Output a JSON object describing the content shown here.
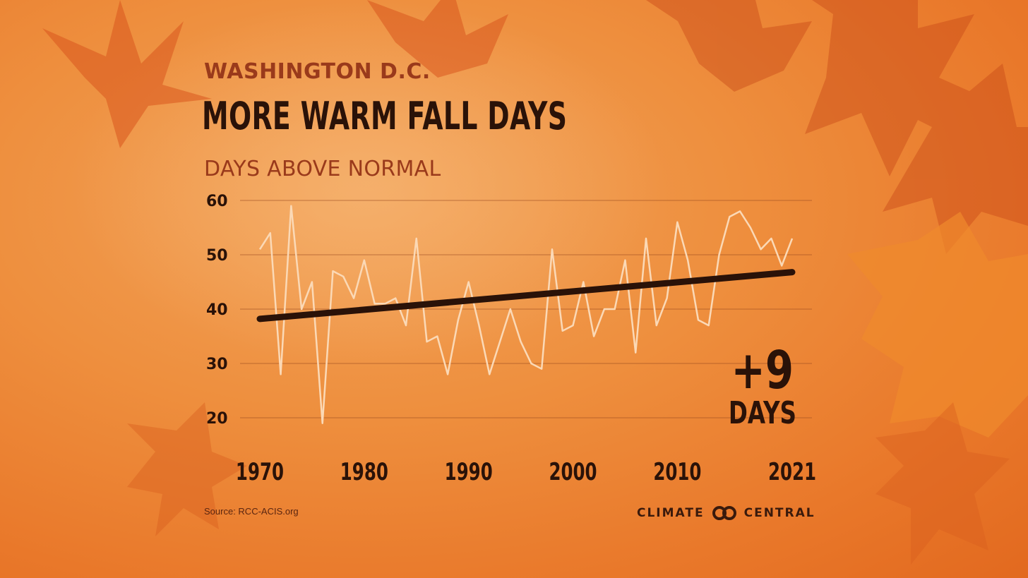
{
  "header": {
    "supertitle": "WASHINGTON D.C.",
    "title": "MORE WARM FALL DAYS",
    "subtitle": "DAYS ABOVE NORMAL"
  },
  "callout": {
    "value": "+9",
    "unit": "DAYS"
  },
  "footer": {
    "source": "Source: RCC-ACIS.org",
    "brand_left": "CLIMATE",
    "brand_right": "CENTRAL"
  },
  "colors": {
    "background": "#ee8f3e",
    "data_line": "#fbd9b6",
    "trend_line": "#2a1208",
    "grid": "#9a4a20",
    "title": "#2a1208",
    "accent_text": "#9a3a1b"
  },
  "chart_data": {
    "type": "line",
    "title": "MORE WARM FALL DAYS",
    "ylabel": "DAYS ABOVE NORMAL",
    "xlabel": "",
    "ylim": [
      20,
      60
    ],
    "yticks": [
      60,
      50,
      40,
      30,
      20
    ],
    "xticks": [
      "1970",
      "1980",
      "1990",
      "2000",
      "2010",
      "2021"
    ],
    "grid": true,
    "x": [
      1970,
      1971,
      1972,
      1973,
      1974,
      1975,
      1976,
      1977,
      1978,
      1979,
      1980,
      1981,
      1982,
      1983,
      1984,
      1985,
      1986,
      1987,
      1988,
      1989,
      1990,
      1991,
      1992,
      1993,
      1994,
      1995,
      1996,
      1997,
      1998,
      1999,
      2000,
      2001,
      2002,
      2003,
      2004,
      2005,
      2006,
      2007,
      2008,
      2009,
      2010,
      2011,
      2012,
      2013,
      2014,
      2015,
      2016,
      2017,
      2018,
      2019,
      2020,
      2021
    ],
    "series": [
      {
        "values": [
          51,
          54,
          28,
          59,
          40,
          45,
          19,
          47,
          46,
          42,
          49,
          41,
          41,
          42,
          37,
          53,
          34,
          35,
          28,
          38,
          45,
          37,
          28,
          34,
          40,
          34,
          30,
          29,
          51,
          36,
          37,
          45,
          35,
          40,
          40,
          49,
          32,
          53,
          37,
          42,
          56,
          49,
          38,
          37,
          50,
          57,
          58,
          55,
          51,
          53,
          48,
          53
        ]
      },
      {
        "name": "trend",
        "x": [
          1970,
          2021
        ],
        "values": [
          38.2,
          46.8
        ]
      }
    ]
  }
}
